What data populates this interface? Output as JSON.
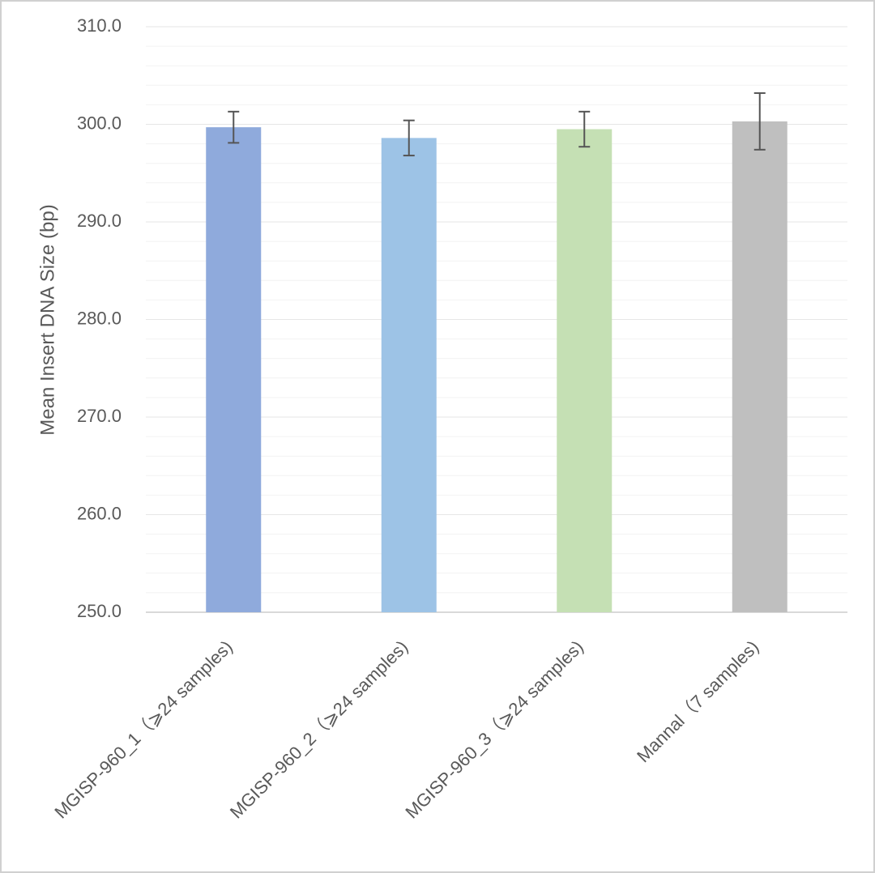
{
  "chart_data": {
    "type": "bar",
    "ylabel": "Mean Insert DNA Size (bp)",
    "categories": [
      "MGISP-960_1（⩾24 samples)",
      "MGISP-960_2（⩾24 samples)",
      "MGISP-960_3（⩾24 samples)",
      "Mannal（7 samples)"
    ],
    "values": [
      299.7,
      298.6,
      299.5,
      300.3
    ],
    "errors": [
      1.6,
      1.8,
      1.8,
      2.9
    ],
    "colors": [
      "#8faadc",
      "#9dc3e6",
      "#c5e0b4",
      "#bfbfbf"
    ],
    "ylim": [
      250,
      310
    ],
    "yticks": [
      {
        "value": 250,
        "label": "250.0"
      },
      {
        "value": 260,
        "label": "260.0"
      },
      {
        "value": 270,
        "label": "270.0"
      },
      {
        "value": 280,
        "label": "280.0"
      },
      {
        "value": 290,
        "label": "290.0"
      },
      {
        "value": 300,
        "label": "300.0"
      },
      {
        "value": 310,
        "label": "310.0"
      }
    ],
    "minor_yticks": [
      252,
      254,
      256,
      258,
      262,
      264,
      266,
      268,
      272,
      274,
      276,
      278,
      282,
      284,
      286,
      288,
      292,
      294,
      296,
      298,
      302,
      304,
      306,
      308
    ],
    "grid": true
  }
}
